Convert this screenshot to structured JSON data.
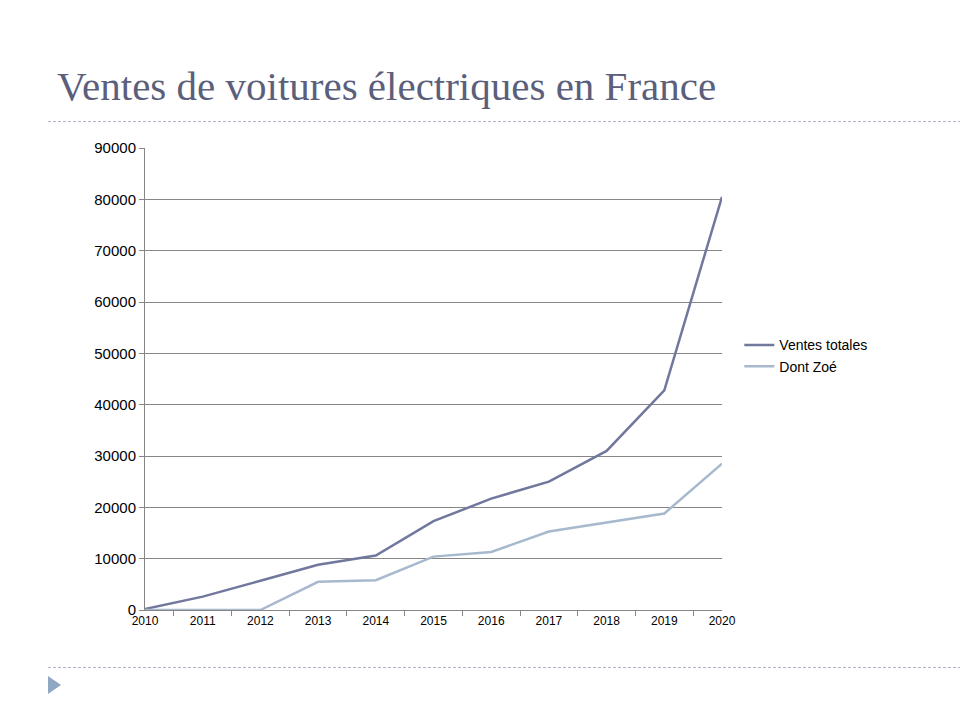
{
  "chart_data": {
    "type": "line",
    "title": "Ventes de voitures électriques en France",
    "categories": [
      "2010",
      "2011",
      "2012",
      "2013",
      "2014",
      "2015",
      "2016",
      "2017",
      "2018",
      "2019",
      "2020"
    ],
    "series": [
      {
        "name": "Ventes totales",
        "color": "#72779d",
        "values": [
          200,
          2600,
          5700,
          8800,
          10600,
          17300,
          21700,
          25000,
          31000,
          42800,
          80500
        ]
      },
      {
        "name": "Dont Zoé",
        "color": "#a6b9cd",
        "values": [
          0,
          0,
          0,
          5500,
          5800,
          10400,
          11300,
          15300,
          17000,
          18800,
          28500
        ]
      }
    ],
    "ylim": [
      0,
      90000
    ],
    "yticks": [
      0,
      10000,
      20000,
      30000,
      40000,
      50000,
      60000,
      70000,
      80000,
      90000
    ],
    "grid": true,
    "legend": "right"
  }
}
